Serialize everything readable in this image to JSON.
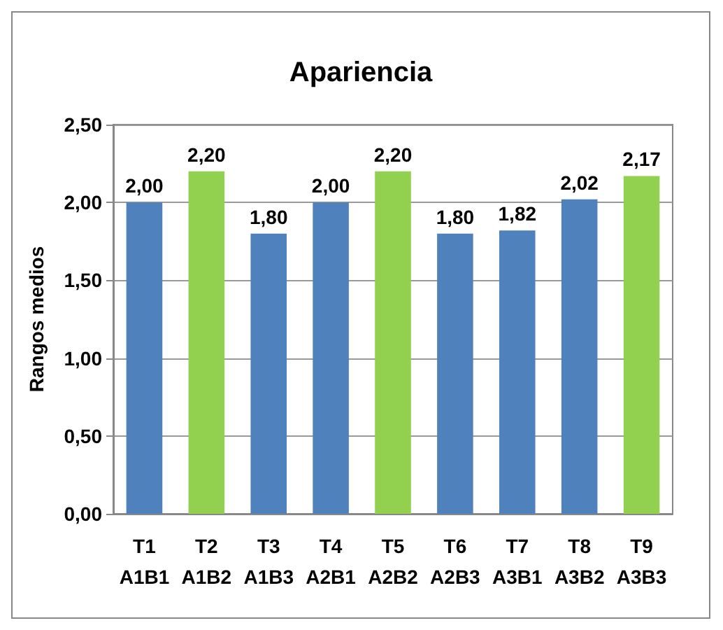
{
  "chart_data": {
    "type": "bar",
    "title": "Apariencia",
    "ylabel": "Rangos medios",
    "categories": [
      "T1\nA1B1",
      "T2\nA1B2",
      "T3\nA1B3",
      "T4\nA2B1",
      "T5\nA2B2",
      "T6\nA2B3",
      "T7\nA3B1",
      "T8\nA3B2",
      "T9\nA3B3"
    ],
    "values": [
      2.0,
      2.2,
      1.8,
      2.0,
      2.2,
      1.8,
      1.82,
      2.02,
      2.17
    ],
    "colors": [
      "#4f81bd",
      "#92d050",
      "#4f81bd",
      "#4f81bd",
      "#92d050",
      "#4f81bd",
      "#4f81bd",
      "#4f81bd",
      "#92d050"
    ],
    "value_labels": [
      "2,00",
      "2,20",
      "1,80",
      "2,00",
      "2,20",
      "1,80",
      "1,82",
      "2,02",
      "2,17"
    ],
    "ylim": [
      0,
      2.5
    ],
    "yticks": [
      {
        "value": 0,
        "label": "0,00"
      },
      {
        "value": 0.5,
        "label": "0,50"
      },
      {
        "value": 1,
        "label": "1,00"
      },
      {
        "value": 1.5,
        "label": "1,50"
      },
      {
        "value": 2,
        "label": "2,00"
      },
      {
        "value": 2.5,
        "label": "2,50"
      }
    ],
    "grid": "y"
  }
}
